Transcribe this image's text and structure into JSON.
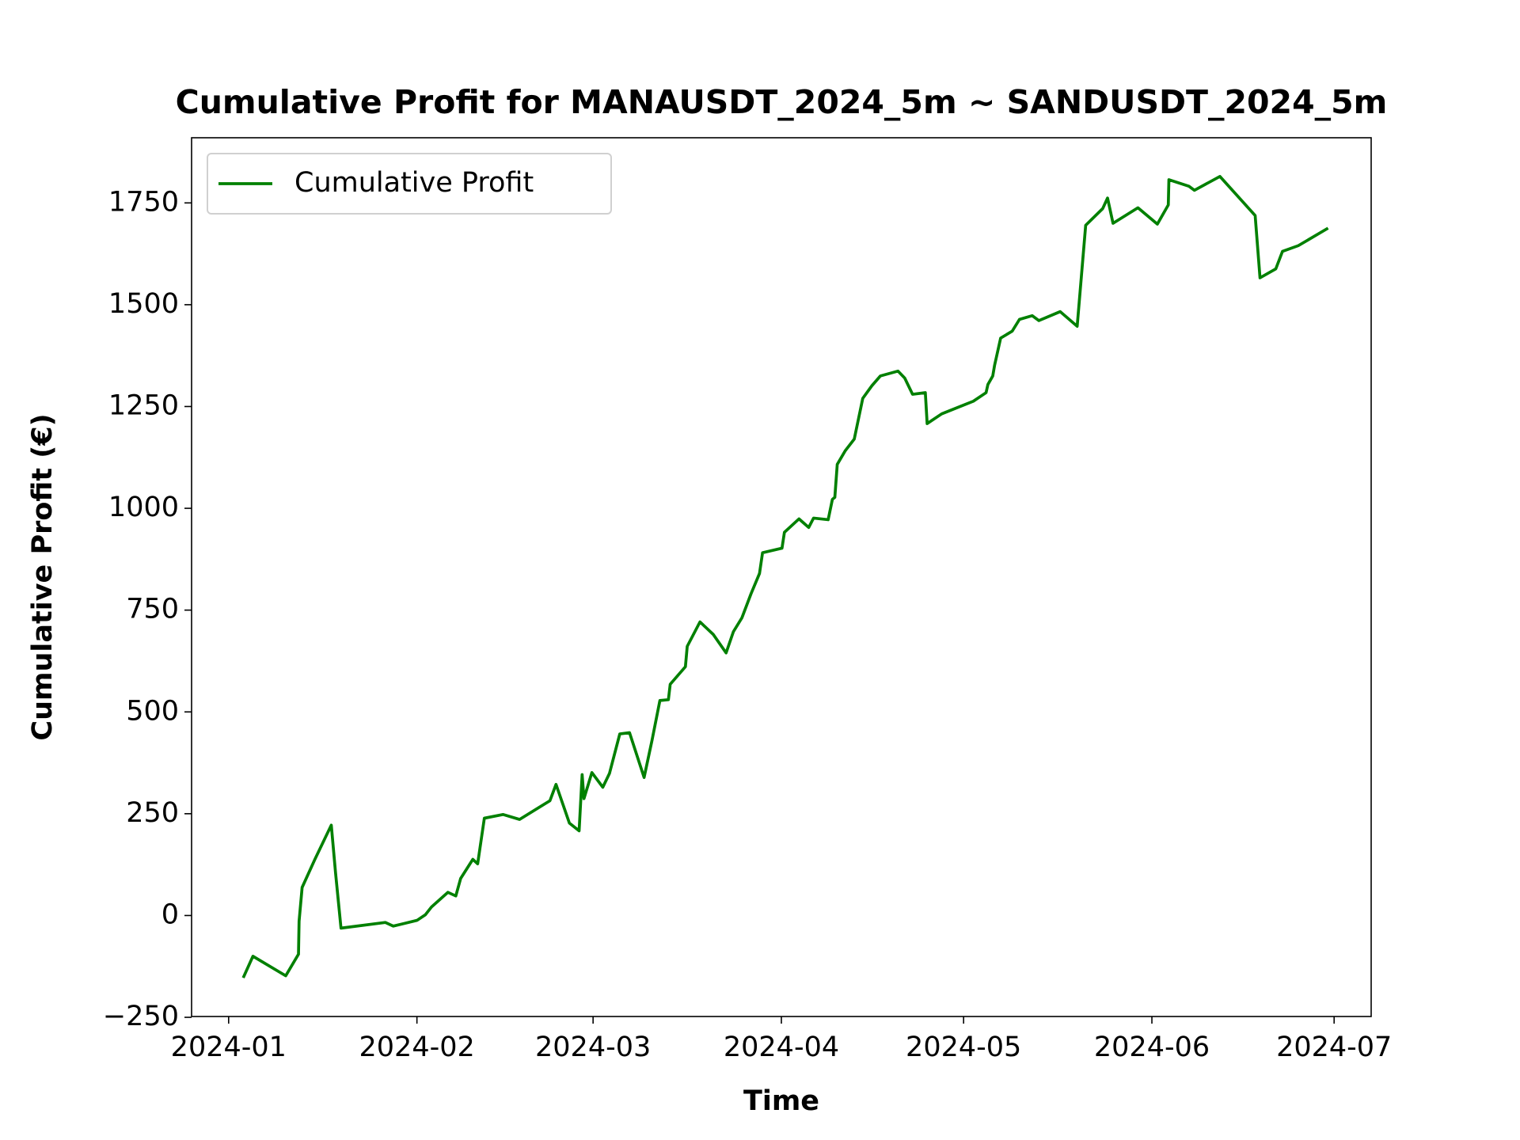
{
  "chart_data": {
    "type": "line",
    "title": "Cumulative Profit for MANAUSDT_2024_5m ~ SANDUSDT_2024_5m",
    "x_label": "Time",
    "y_label": "Cumulative Profit (€)",
    "x": [
      2.4,
      4.0,
      9.4,
      11.5,
      11.6,
      12.1,
      14.2,
      16.9,
      17.6,
      18.5,
      25.8,
      27.1,
      31,
      32.4,
      33.4,
      36.1,
      37.4,
      38.2,
      40.2,
      41.0,
      42.1,
      45.2,
      47.9,
      52.9,
      53.9,
      56.1,
      57.7,
      58.2,
      58.5,
      59.8,
      61.6,
      62.7,
      64.4,
      66.0,
      68.4,
      69.7,
      71.0,
      72.4,
      72.7,
      75.2,
      75.5,
      77.6,
      79.8,
      81.9,
      83.1,
      84.5,
      86.0,
      87.4,
      87.9,
      91.1,
      91.5,
      93.9,
      95.5,
      96.3,
      98.7,
      99.4,
      99.8,
      100.2,
      101.5,
      103.0,
      104.4,
      105.9,
      107.3,
      110.2,
      111.3,
      112.6,
      114.7,
      115.0,
      117.4,
      122.6,
      124.7,
      125.0,
      125.8,
      126.1,
      127.1,
      129.0,
      130.2,
      132.3,
      133.4,
      136.9,
      139.7,
      141.1,
      143.9,
      144.7,
      145.6,
      149.7,
      152.9,
      154.7,
      154.8,
      158.1,
      159.0,
      163.2,
      169.0,
      169.8,
      172.4,
      173.5,
      176.1,
      181.0
    ],
    "series": [
      {
        "name": "Cumulative Profit",
        "color": "#008000",
        "values": [
          -153,
          -100,
          -148,
          -95,
          -14,
          69,
          138,
          222,
          105,
          -31,
          -17,
          -26,
          -12,
          2,
          21,
          57,
          48,
          91,
          138,
          127,
          239,
          248,
          236,
          282,
          322,
          227,
          208,
          346,
          287,
          351,
          315,
          349,
          446,
          449,
          339,
          430,
          528,
          530,
          568,
          611,
          661,
          721,
          690,
          645,
          697,
          731,
          790,
          840,
          891,
          902,
          941,
          974,
          953,
          976,
          972,
          1022,
          1027,
          1108,
          1141,
          1170,
          1270,
          1301,
          1325,
          1337,
          1320,
          1280,
          1284,
          1208,
          1232,
          1263,
          1284,
          1304,
          1325,
          1351,
          1418,
          1435,
          1464,
          1473,
          1461,
          1483,
          1447,
          1695,
          1736,
          1762,
          1700,
          1738,
          1698,
          1745,
          1807,
          1791,
          1781,
          1815,
          1719,
          1566,
          1588,
          1631,
          1645,
          1688
        ]
      }
    ],
    "xlim": [
      -6.1,
      188.1
    ],
    "xticks": [
      {
        "value": 0,
        "label": "2024-01"
      },
      {
        "value": 31,
        "label": "2024-02"
      },
      {
        "value": 60,
        "label": "2024-03"
      },
      {
        "value": 91,
        "label": "2024-04"
      },
      {
        "value": 121,
        "label": "2024-05"
      },
      {
        "value": 152,
        "label": "2024-06"
      },
      {
        "value": 182,
        "label": "2024-07"
      }
    ],
    "ylim": [
      -248,
      1910
    ],
    "yticks": [
      {
        "value": -250,
        "label": "−250"
      },
      0,
      250,
      500,
      750,
      1000,
      1250,
      1500,
      1750
    ],
    "grid": false,
    "legend": "upper left"
  }
}
